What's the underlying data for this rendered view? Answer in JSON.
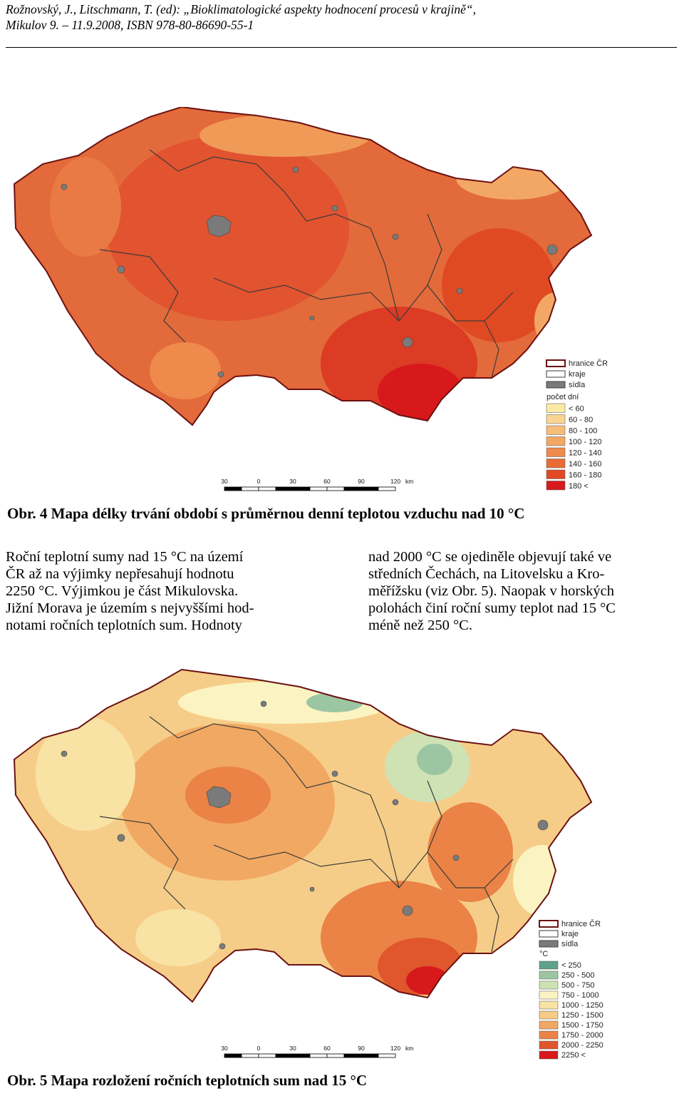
{
  "header": {
    "line1": "Rožnovský, J., Litschmann, T. (ed): „Bioklimatologické aspekty hodnocení procesů v krajině“,",
    "line2": "Mikulov 9. – 11.9.2008, ISBN 978-80-86690-55-1"
  },
  "fig4": {
    "caption": "Obr. 4 Mapa délky trvání období s průměrnou denní teplotou vzduchu nad 10 °C",
    "legend": {
      "border_label": "hranice ČR",
      "regions_label": "kraje",
      "settlements_label": "sídla",
      "title": "počet dní",
      "classes": [
        {
          "label": "< 60",
          "color": "#fbeaa6"
        },
        {
          "label": "60 - 80",
          "color": "#f9d493"
        },
        {
          "label": "80 - 100",
          "color": "#f6bd79"
        },
        {
          "label": "100 - 120",
          "color": "#f3a764"
        },
        {
          "label": "120 - 140",
          "color": "#ee8a4c"
        },
        {
          "label": "140 - 160",
          "color": "#e96b35"
        },
        {
          "label": "160 - 180",
          "color": "#e04a22"
        },
        {
          "label": "180 <",
          "color": "#d7191c"
        }
      ]
    },
    "scale": {
      "ticks": [
        "30",
        "0",
        "30",
        "60",
        "90",
        "120"
      ],
      "unit": "km"
    }
  },
  "text": {
    "left": [
      "Roční teplotní sumy nad 15 °C na území",
      "ČR až na výjimky nepřesahují hodnotu",
      "2250 °C. Výjimkou je část Mikulovska.",
      "Jižní Morava je územím s nejvyššími hod-",
      "notami ročních teplotních sum. Hodnoty"
    ],
    "right": [
      "nad 2000 °C se ojediněle objevují také ve",
      "středních Čechách, na Litovelsku a Kro-",
      "měřížsku (viz Obr. 5). Naopak v horských",
      "polohách činí roční sumy teplot nad 15 °C",
      "méně než 250 °C."
    ]
  },
  "fig5": {
    "caption": "Obr. 5 Mapa rozložení ročních teplotních sum nad 15 °C",
    "legend": {
      "border_label": "hranice ČR",
      "regions_label": "kraje",
      "settlements_label": "sídla",
      "title": "°C",
      "classes": [
        {
          "label": "< 250",
          "color": "#5fa18a"
        },
        {
          "label": "250 - 500",
          "color": "#9cc6a2"
        },
        {
          "label": "500 - 750",
          "color": "#cfe2b4"
        },
        {
          "label": "750 - 1000",
          "color": "#fbf4c2"
        },
        {
          "label": "1000 - 1250",
          "color": "#f8e3a4"
        },
        {
          "label": "1250 - 1500",
          "color": "#f6cb85"
        },
        {
          "label": "1500 - 1750",
          "color": "#f1a862"
        },
        {
          "label": "1750 - 2000",
          "color": "#ea8345"
        },
        {
          "label": "2000 - 2250",
          "color": "#e0562d"
        },
        {
          "label": "2250 <",
          "color": "#d7191c"
        }
      ]
    },
    "scale": {
      "ticks": [
        "30",
        "0",
        "30",
        "60",
        "90",
        "120"
      ],
      "unit": "km"
    }
  },
  "colors": {
    "map1_base": "#e36a3a",
    "map1_hot": "#d7261e",
    "map2_base": "#f6cd88",
    "map2_hot": "#e0562d",
    "border": "#6b1111",
    "regions": "#3a3a3a",
    "settlements": "#7a7a7a"
  }
}
